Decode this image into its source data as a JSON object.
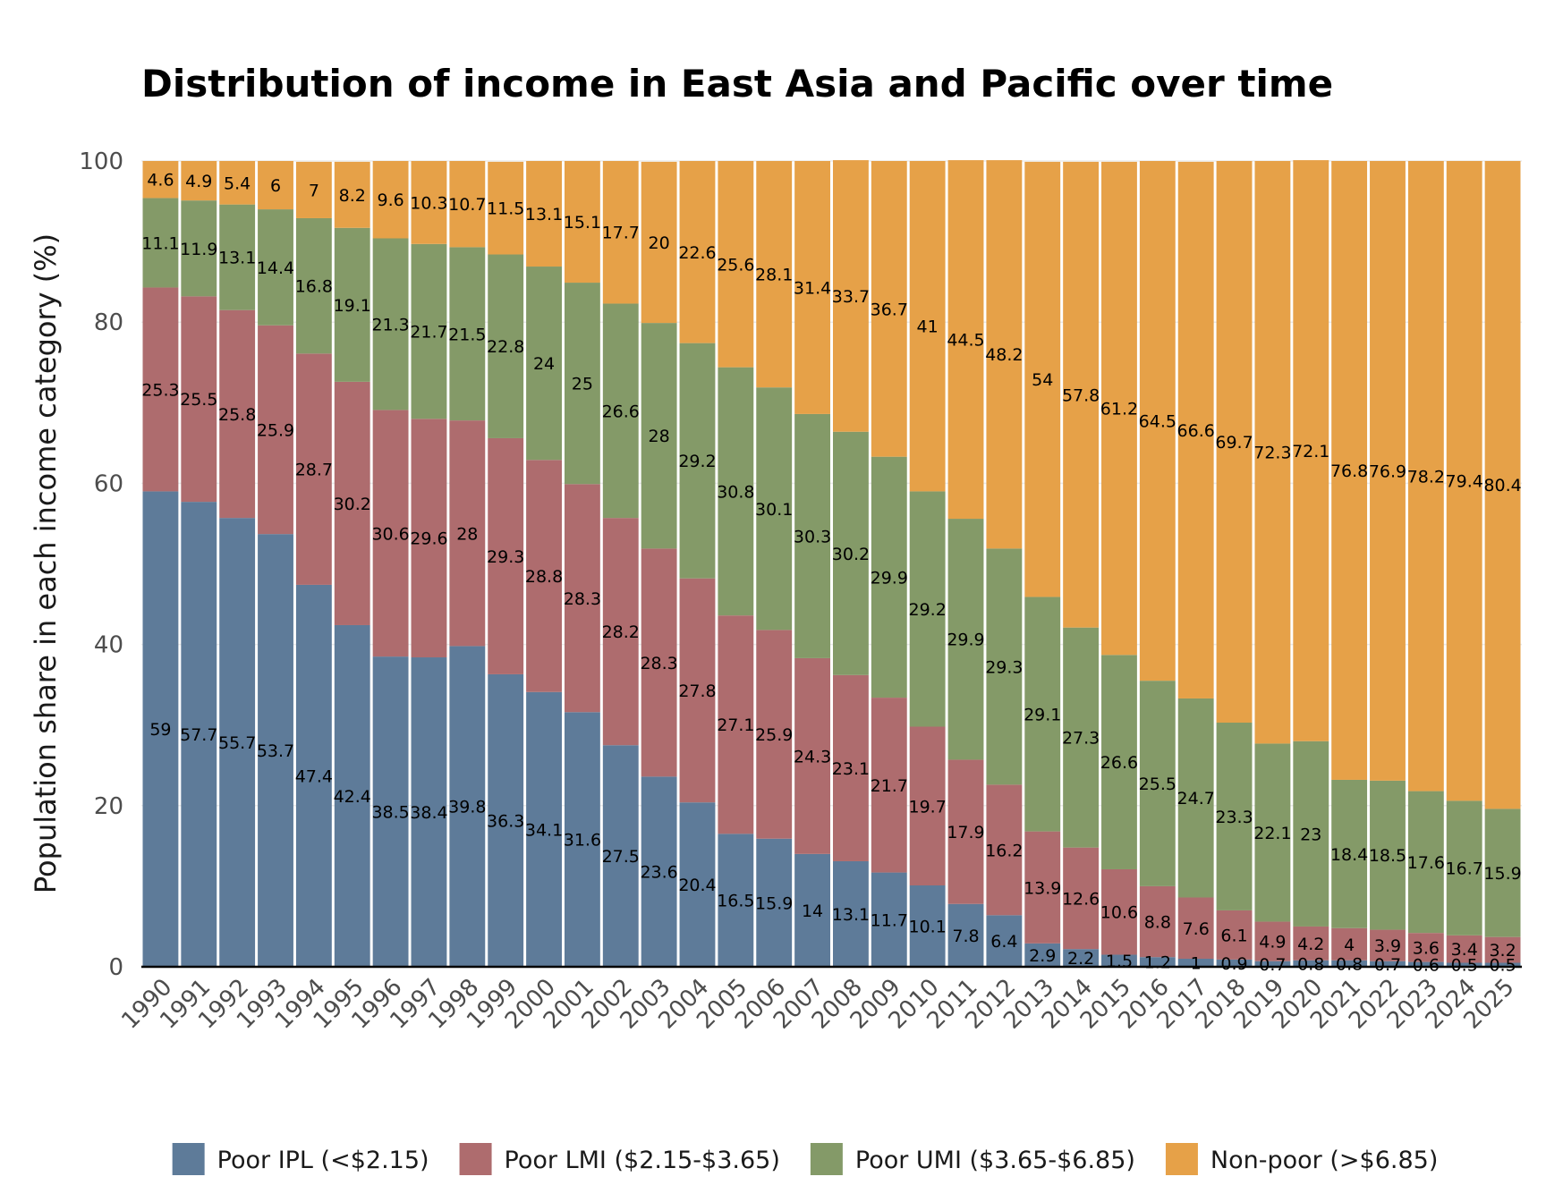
{
  "chart_data": {
    "type": "bar",
    "stacked": true,
    "title": "Distribution of income in East Asia and Pacific over time",
    "xlabel": "",
    "ylabel": "Population share in each income category (%)",
    "ylim": [
      0,
      100
    ],
    "yticks": [
      0,
      20,
      40,
      60,
      80,
      100
    ],
    "grid": true,
    "legend_position": "bottom",
    "categories": [
      "1990",
      "1991",
      "1992",
      "1993",
      "1994",
      "1995",
      "1996",
      "1997",
      "1998",
      "1999",
      "2000",
      "2001",
      "2002",
      "2003",
      "2004",
      "2005",
      "2006",
      "2007",
      "2008",
      "2009",
      "2010",
      "2011",
      "2012",
      "2013",
      "2014",
      "2015",
      "2016",
      "2017",
      "2018",
      "2019",
      "2020",
      "2021",
      "2022",
      "2023",
      "2024",
      "2025"
    ],
    "series": [
      {
        "name": "Poor IPL (<$2.15)",
        "color": "#5e7b99",
        "values": [
          59,
          57.7,
          55.7,
          53.7,
          47.4,
          42.4,
          38.5,
          38.4,
          39.8,
          36.3,
          34.1,
          31.6,
          27.5,
          23.6,
          20.4,
          16.5,
          15.9,
          14,
          13.1,
          11.7,
          10.1,
          7.8,
          6.4,
          2.9,
          2.2,
          1.5,
          1.2,
          1,
          0.9,
          0.7,
          0.8,
          0.8,
          0.7,
          0.6,
          0.5,
          0.5
        ]
      },
      {
        "name": "Poor LMI ($2.15-$3.65)",
        "color": "#ae6c6e",
        "values": [
          25.3,
          25.5,
          25.8,
          25.9,
          28.7,
          30.2,
          30.6,
          29.6,
          28,
          29.3,
          28.8,
          28.3,
          28.2,
          28.3,
          27.8,
          27.1,
          25.9,
          24.3,
          23.1,
          21.7,
          19.7,
          17.9,
          16.2,
          13.9,
          12.6,
          10.6,
          8.8,
          7.6,
          6.1,
          4.9,
          4.2,
          4,
          3.9,
          3.6,
          3.4,
          3.2
        ]
      },
      {
        "name": "Poor UMI ($3.65-$6.85)",
        "color": "#849a68",
        "values": [
          11.1,
          11.9,
          13.1,
          14.4,
          16.8,
          19.1,
          21.3,
          21.7,
          21.5,
          22.8,
          24,
          25,
          26.6,
          28,
          29.2,
          30.8,
          30.1,
          30.3,
          30.2,
          29.9,
          29.2,
          29.9,
          29.3,
          29.1,
          27.3,
          26.6,
          25.5,
          24.7,
          23.3,
          22.1,
          23,
          18.4,
          18.5,
          17.6,
          16.7,
          15.9
        ]
      },
      {
        "name": "Non-poor (>$6.85)",
        "color": "#e6a148",
        "values": [
          4.6,
          4.9,
          5.4,
          6,
          7,
          8.2,
          9.6,
          10.3,
          10.7,
          11.5,
          13.1,
          15.1,
          17.7,
          20,
          22.6,
          25.6,
          28.1,
          31.4,
          33.7,
          36.7,
          41,
          44.5,
          48.2,
          54,
          57.8,
          61.2,
          64.5,
          66.6,
          69.7,
          72.3,
          72.1,
          76.8,
          76.9,
          78.2,
          79.4,
          80.4
        ]
      }
    ]
  }
}
